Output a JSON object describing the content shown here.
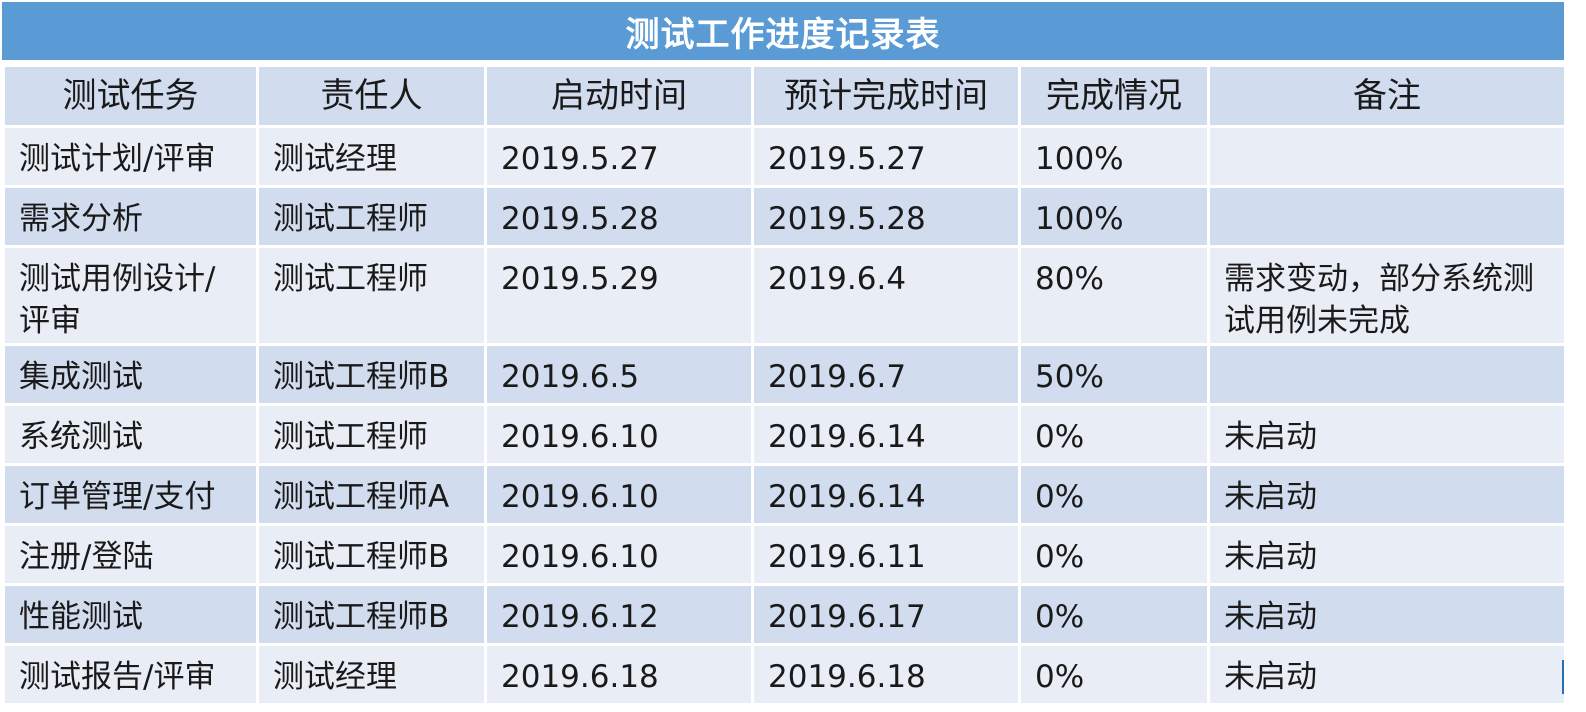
{
  "title": "测试工作进度记录表",
  "columns": [
    "测试任务",
    "责任人",
    "启动时间",
    "预计完成时间",
    "完成情况",
    "备注"
  ],
  "rows": [
    {
      "task": "测试计划/评审",
      "owner": "测试经理",
      "start": "2019.5.27",
      "due": "2019.5.27",
      "progress": "100%",
      "note": ""
    },
    {
      "task": "需求分析",
      "owner": "测试工程师",
      "start": "2019.5.28",
      "due": "2019.5.28",
      "progress": "100%",
      "note": ""
    },
    {
      "task": "测试用例设计/评审",
      "owner": "测试工程师",
      "start": "2019.5.29",
      "due": "2019.6.4",
      "progress": "80%",
      "note": "需求变动，部分系统测试用例未完成"
    },
    {
      "task": "集成测试",
      "owner": "测试工程师B",
      "start": "2019.6.5",
      "due": "2019.6.7",
      "progress": "50%",
      "note": ""
    },
    {
      "task": "系统测试",
      "owner": "测试工程师",
      "start": "2019.6.10",
      "due": "2019.6.14",
      "progress": "0%",
      "note": "未启动"
    },
    {
      "task": "订单管理/支付",
      "owner": "测试工程师A",
      "start": "2019.6.10",
      "due": "2019.6.14",
      "progress": "0%",
      "note": "未启动"
    },
    {
      "task": "注册/登陆",
      "owner": "测试工程师B",
      "start": "2019.6.10",
      "due": "2019.6.11",
      "progress": "0%",
      "note": "未启动"
    },
    {
      "task": "性能测试",
      "owner": "测试工程师B",
      "start": "2019.6.12",
      "due": "2019.6.17",
      "progress": "0%",
      "note": "未启动"
    },
    {
      "task": "测试报告/评审",
      "owner": "测试经理",
      "start": "2019.6.18",
      "due": "2019.6.18",
      "progress": "0%",
      "note": "未启动"
    }
  ]
}
